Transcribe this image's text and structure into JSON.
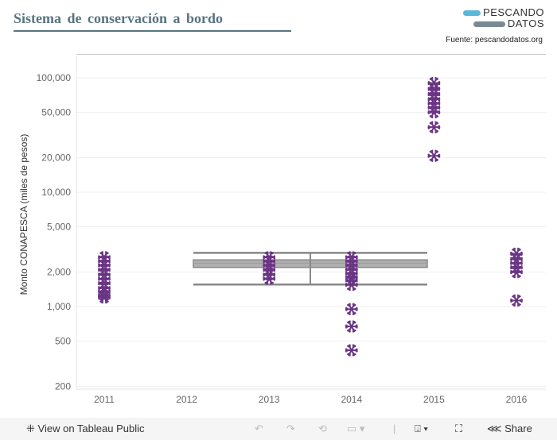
{
  "header": {
    "title": "Sistema de conservación a bordo",
    "logo_line1": "PESCANDO",
    "logo_line2": "DATOS",
    "source": "Fuente: pescandodatos.org"
  },
  "chart_data": {
    "type": "scatter",
    "title": "Sistema de conservación a bordo",
    "xlabel": "",
    "ylabel": "Monto CONAPESCA (miles de pesos)",
    "y_scale": "log",
    "ylim": [
      180,
      120000
    ],
    "y_ticks": [
      {
        "v": 200,
        "label": "200"
      },
      {
        "v": 500,
        "label": "500"
      },
      {
        "v": 1000,
        "label": "1,000"
      },
      {
        "v": 2000,
        "label": "2,000"
      },
      {
        "v": 5000,
        "label": "5,000"
      },
      {
        "v": 10000,
        "label": "10,000"
      },
      {
        "v": 20000,
        "label": "20,000"
      },
      {
        "v": 50000,
        "label": "50,000"
      },
      {
        "v": 100000,
        "label": "100,000"
      }
    ],
    "categories": [
      "2011",
      "2012",
      "2013",
      "2014",
      "2015",
      "2016"
    ],
    "marker": "snowflake",
    "marker_color": "#6b3585",
    "grid": true,
    "points": {
      "2011": [
        2700,
        2500,
        2300,
        2100,
        1900,
        1750,
        1600,
        1450,
        1350,
        1250,
        1200
      ],
      "2012": [],
      "2013": [
        2700,
        2500,
        2300,
        2100,
        1900,
        1750
      ],
      "2014": [
        2700,
        2500,
        2300,
        2100,
        1950,
        1800,
        1700,
        1550,
        950,
        670,
        415
      ],
      "2015": [
        90000,
        80000,
        72000,
        65000,
        60000,
        55000,
        50000,
        37000,
        20800
      ],
      "2016": [
        2900,
        2600,
        2400,
        2200,
        2000,
        1130
      ]
    },
    "reference_box": {
      "whisker_high": 2950,
      "box_high": 2560,
      "median": 2400,
      "box_low": 2200,
      "whisker_low": 1560,
      "from": "2012",
      "to": "2015",
      "color": "#888888"
    }
  },
  "toolbar": {
    "view_label": "View on Tableau Public",
    "share_label": "Share"
  }
}
